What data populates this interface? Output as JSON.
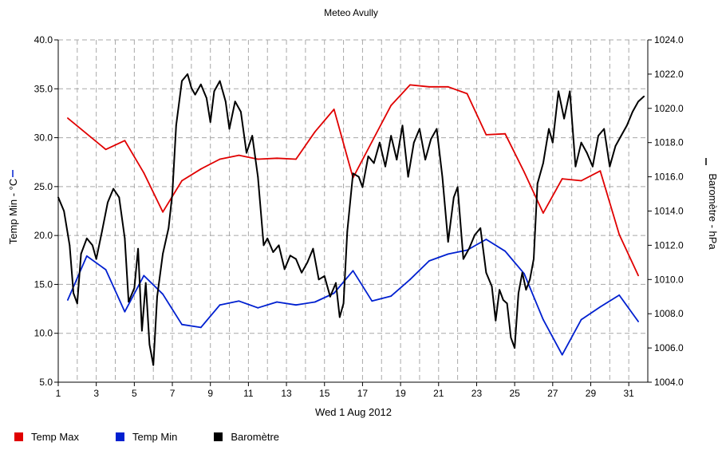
{
  "chart_data": {
    "type": "line",
    "title": "Meteo  Avully",
    "xlabel": "Wed 1 Aug 2012",
    "ylabel_left": "Temp Min - °C",
    "ylabel_right": "Baromètre - hPa",
    "xlim": [
      1,
      32
    ],
    "ylim_left": [
      5,
      40
    ],
    "ylim_right": [
      1004,
      1024
    ],
    "x_ticks": [
      "1",
      "3",
      "5",
      "7",
      "9",
      "11",
      "13",
      "15",
      "17",
      "19",
      "21",
      "23",
      "25",
      "27",
      "29",
      "31"
    ],
    "y_left_ticks": [
      "5.0",
      "10.0",
      "15.0",
      "20.0",
      "25.0",
      "30.0",
      "35.0",
      "40.0"
    ],
    "y_right_ticks": [
      "1004.0",
      "1006.0",
      "1008.0",
      "1010.0",
      "1012.0",
      "1014.0",
      "1016.0",
      "1018.0",
      "1020.0",
      "1022.0",
      "1024.0"
    ],
    "grid": true,
    "legend_position": "bottom-left",
    "series": [
      {
        "name": "Temp Max",
        "color": "#e00000",
        "axis": "left",
        "x": [
          1.5,
          3.5,
          4.5,
          5.5,
          6.5,
          7.5,
          8.5,
          9.5,
          10.5,
          11.5,
          12.5,
          13.5,
          14.5,
          15.5,
          16.5,
          17.5,
          18.5,
          19.5,
          20.5,
          21.5,
          22.5,
          23.5,
          24.5,
          25.5,
          26.5,
          27.5,
          28.5,
          29.5,
          30.5,
          31.5
        ],
        "values": [
          32.0,
          28.8,
          29.7,
          26.4,
          22.4,
          25.6,
          26.8,
          27.8,
          28.2,
          27.8,
          27.9,
          27.8,
          30.6,
          32.9,
          25.9,
          29.6,
          33.3,
          35.4,
          35.2,
          35.2,
          34.5,
          30.3,
          30.4,
          26.5,
          22.3,
          25.8,
          25.6,
          26.6,
          20.1,
          15.9
        ]
      },
      {
        "name": "Temp Min",
        "color": "#0020d0",
        "axis": "left",
        "x": [
          1.5,
          2.5,
          3.5,
          4.5,
          5.5,
          6.5,
          7.5,
          8.5,
          9.5,
          10.5,
          11.5,
          12.5,
          13.5,
          14.5,
          15.5,
          16.5,
          17.5,
          18.5,
          19.5,
          20.5,
          21.5,
          22.5,
          23.5,
          24.5,
          25.5,
          26.5,
          27.5,
          28.5,
          29.5,
          30.5,
          31.5
        ],
        "values": [
          13.4,
          17.9,
          16.5,
          12.2,
          15.9,
          14.0,
          10.9,
          10.6,
          12.9,
          13.3,
          12.6,
          13.2,
          12.9,
          13.2,
          14.1,
          16.4,
          13.3,
          13.8,
          15.5,
          17.4,
          18.1,
          18.5,
          19.6,
          18.4,
          16.1,
          11.4,
          7.8,
          11.4,
          12.7,
          13.9,
          11.2
        ]
      },
      {
        "name": "Baromètre",
        "color": "#000000",
        "axis": "right",
        "x": [
          1.0,
          1.3,
          1.6,
          1.8,
          2.0,
          2.2,
          2.5,
          2.8,
          3.0,
          3.3,
          3.6,
          3.9,
          4.2,
          4.5,
          4.7,
          5.0,
          5.2,
          5.4,
          5.6,
          5.8,
          6.0,
          6.2,
          6.5,
          6.8,
          7.0,
          7.2,
          7.5,
          7.8,
          8.0,
          8.2,
          8.5,
          8.8,
          9.0,
          9.2,
          9.5,
          9.8,
          10.0,
          10.3,
          10.6,
          10.9,
          11.2,
          11.5,
          11.8,
          12.0,
          12.3,
          12.6,
          12.9,
          13.2,
          13.5,
          13.8,
          14.1,
          14.4,
          14.7,
          15.0,
          15.3,
          15.6,
          15.8,
          16.0,
          16.2,
          16.5,
          16.8,
          17.0,
          17.3,
          17.6,
          17.9,
          18.2,
          18.5,
          18.8,
          19.1,
          19.4,
          19.7,
          20.0,
          20.3,
          20.6,
          20.9,
          21.2,
          21.5,
          21.8,
          22.0,
          22.3,
          22.6,
          22.9,
          23.2,
          23.5,
          23.8,
          24.0,
          24.2,
          24.4,
          24.6,
          24.8,
          25.0,
          25.2,
          25.4,
          25.6,
          25.8,
          26.0,
          26.2,
          26.5,
          26.8,
          27.0,
          27.3,
          27.6,
          27.9,
          28.2,
          28.5,
          28.8,
          29.1,
          29.4,
          29.7,
          30.0,
          30.3,
          30.6,
          30.9,
          31.2,
          31.5,
          31.8
        ],
        "values": [
          1014.8,
          1014.0,
          1012.0,
          1009.2,
          1008.6,
          1011.5,
          1012.4,
          1012.0,
          1011.2,
          1012.8,
          1014.5,
          1015.3,
          1014.8,
          1012.4,
          1008.7,
          1009.5,
          1011.8,
          1007.0,
          1009.8,
          1006.2,
          1005.0,
          1009.0,
          1011.5,
          1013.0,
          1015.0,
          1019.0,
          1021.6,
          1022.0,
          1021.2,
          1020.8,
          1021.4,
          1020.6,
          1019.2,
          1021.0,
          1021.6,
          1020.4,
          1018.8,
          1020.4,
          1019.8,
          1017.4,
          1018.4,
          1016.0,
          1012.0,
          1012.4,
          1011.6,
          1012.0,
          1010.6,
          1011.4,
          1011.2,
          1010.4,
          1011.0,
          1011.8,
          1010.0,
          1010.2,
          1009.0,
          1009.8,
          1007.8,
          1008.6,
          1012.8,
          1016.2,
          1016.0,
          1015.4,
          1017.2,
          1016.8,
          1018.0,
          1016.6,
          1018.4,
          1017.0,
          1019.0,
          1016.0,
          1018.0,
          1018.8,
          1017.0,
          1018.2,
          1018.8,
          1016.0,
          1012.2,
          1014.8,
          1015.4,
          1011.2,
          1011.8,
          1012.6,
          1013.0,
          1010.4,
          1009.6,
          1007.6,
          1009.4,
          1008.8,
          1008.6,
          1006.6,
          1006.0,
          1009.2,
          1010.4,
          1009.4,
          1010.0,
          1011.2,
          1015.6,
          1016.8,
          1018.8,
          1018.0,
          1021.0,
          1019.4,
          1021.0,
          1016.6,
          1018.0,
          1017.4,
          1016.6,
          1018.4,
          1018.8,
          1016.6,
          1017.8,
          1018.4,
          1019.0,
          1019.8,
          1020.4,
          1020.7
        ]
      }
    ]
  },
  "legend": [
    {
      "label": "Temp Max",
      "color": "#e00000"
    },
    {
      "label": "Temp Min",
      "color": "#0020d0"
    },
    {
      "label": "Baromètre",
      "color": "#000000"
    }
  ]
}
